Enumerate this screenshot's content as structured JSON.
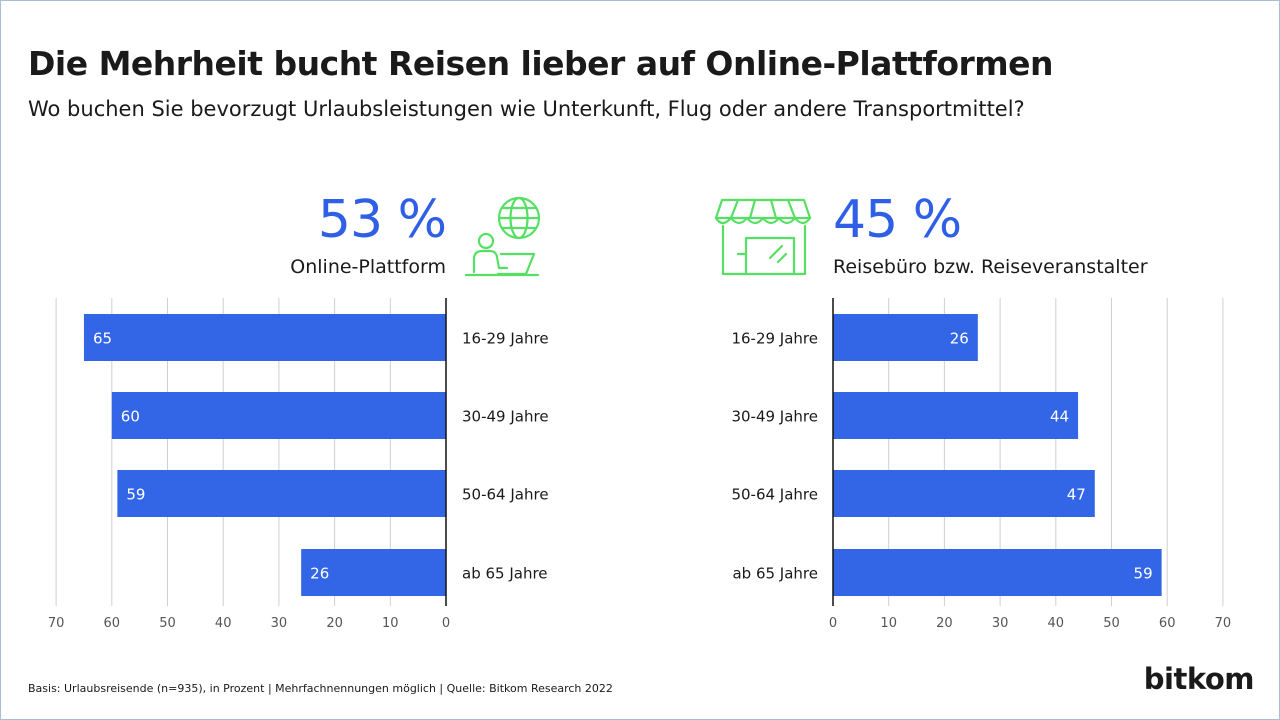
{
  "title": "Die Mehrheit bucht Reisen lieber auf Online-Plattformen",
  "subtitle": "Wo buchen Sie bevorzugt Urlaubsleistungen wie Unterkunft, Flug oder andere Transportmittel?",
  "footnote": "Basis: Urlaubsreisende (n=935), in Prozent | Mehrfachnennungen möglich | Quelle: Bitkom Research 2022",
  "logo": "bitkom",
  "colors": {
    "bar": "#3366e6",
    "accent_text": "#2e5fe6",
    "icon": "#55e063",
    "grid": "#cfcfcf",
    "axis": "#111111"
  },
  "icons": {
    "left": "person-laptop-globe-icon",
    "right": "storefront-icon"
  },
  "chart_data": [
    {
      "type": "bar",
      "orientation": "horizontal",
      "direction": "right-to-left",
      "headline": "53 %",
      "label": "Online-Plattform",
      "categories": [
        "16-29 Jahre",
        "30-49 Jahre",
        "50-64 Jahre",
        "ab 65 Jahre"
      ],
      "values": [
        65,
        60,
        59,
        26
      ],
      "value_labels": [
        "65",
        "60",
        "59",
        "26"
      ],
      "xlim": [
        0,
        70
      ],
      "ticks": [
        "0",
        "10",
        "20",
        "30",
        "40",
        "50",
        "60",
        "70"
      ],
      "tick_values": [
        0,
        10,
        20,
        30,
        40,
        50,
        60,
        70
      ],
      "grid": true
    },
    {
      "type": "bar",
      "orientation": "horizontal",
      "direction": "left-to-right",
      "headline": "45 %",
      "label": "Reisebüro bzw. Reiseveranstalter",
      "categories": [
        "16-29 Jahre",
        "30-49 Jahre",
        "50-64 Jahre",
        "ab 65 Jahre"
      ],
      "values": [
        26,
        44,
        47,
        59
      ],
      "value_labels": [
        "26",
        "44",
        "47",
        "59"
      ],
      "xlim": [
        0,
        70
      ],
      "ticks": [
        "0",
        "10",
        "20",
        "30",
        "40",
        "50",
        "60",
        "70"
      ],
      "tick_values": [
        0,
        10,
        20,
        30,
        40,
        50,
        60,
        70
      ],
      "grid": true
    }
  ]
}
